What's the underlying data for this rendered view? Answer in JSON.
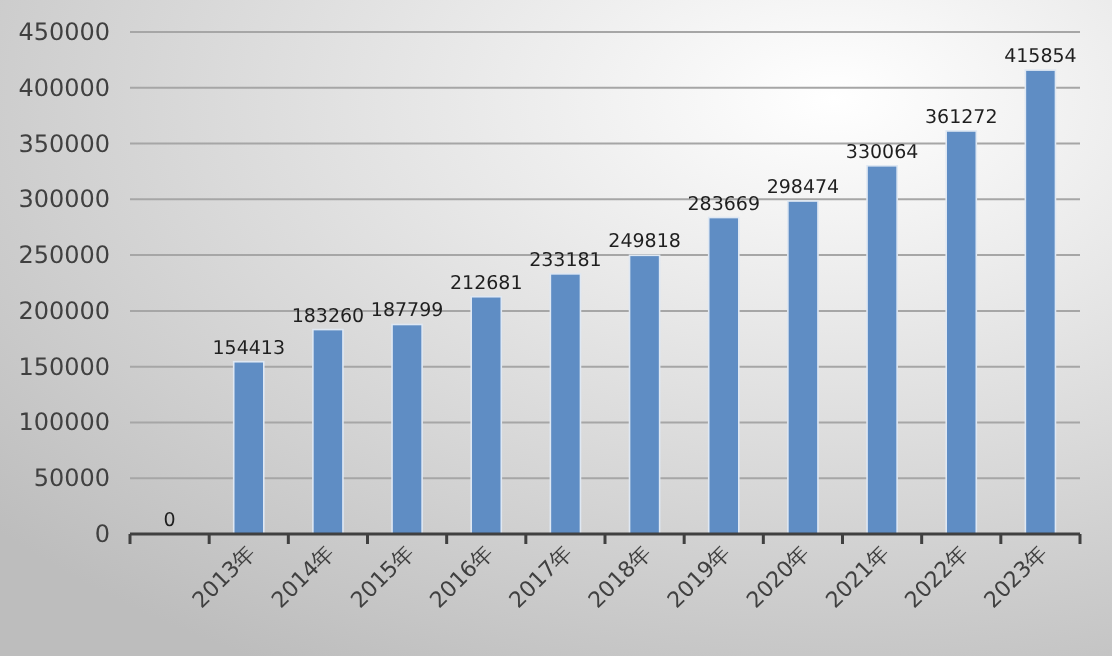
{
  "chart_data": {
    "type": "bar",
    "categories": [
      null,
      "2013年",
      "2014年",
      "2015年",
      "2016年",
      "2017年",
      "2018年",
      "2019年",
      "2020年",
      "2021年",
      "2022年",
      "2023年"
    ],
    "values": [
      0,
      154413,
      183260,
      187799,
      212681,
      233181,
      249818,
      283669,
      298474,
      330064,
      361272,
      415854
    ],
    "color": "#5f8dc4",
    "ylim": [
      0,
      450000
    ],
    "yticks": [
      0,
      50000,
      100000,
      150000,
      200000,
      250000,
      300000,
      350000,
      400000,
      450000
    ],
    "grid": "y",
    "data_labels": true
  }
}
